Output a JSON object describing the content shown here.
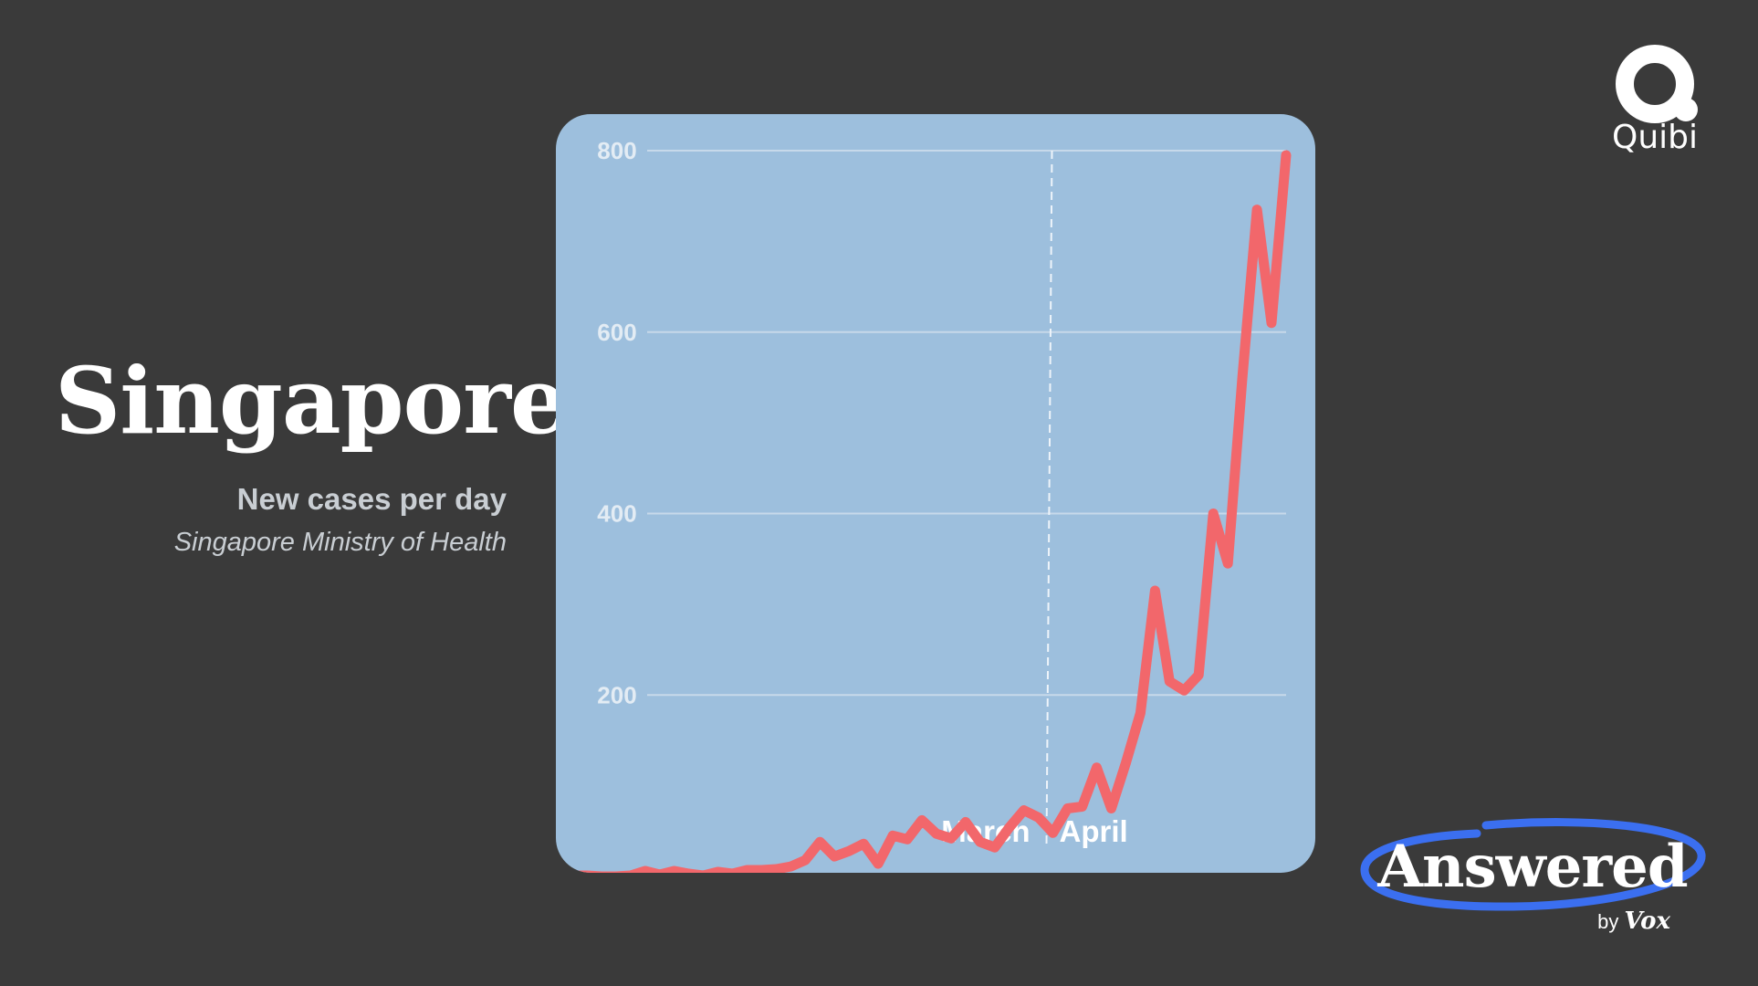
{
  "header": {
    "title": "Singapore",
    "subtitle": "New cases per day",
    "source": "Singapore Ministry of Health"
  },
  "branding": {
    "quibi": "Quibi",
    "answered": "Answered",
    "by": "by",
    "vox": "Vox"
  },
  "colors": {
    "background": "#3a3a3a",
    "chart_background": "#9dbfdd",
    "line": "#f2676b",
    "gridline": "#c7d9ea",
    "answered_ring": "#3b6ff0"
  },
  "chart_data": {
    "type": "line",
    "title": "",
    "xlabel": "",
    "ylabel": "",
    "ylim": [
      0,
      800
    ],
    "y_ticks": [
      200,
      400,
      600,
      800
    ],
    "y_tick_labels": [
      "200",
      "400",
      "600",
      "800"
    ],
    "grid": true,
    "x_domain": [
      0,
      76
    ],
    "period_labels": [
      "March",
      "April"
    ],
    "month_boundary_index": 51,
    "series": [
      {
        "values": [
          3,
          1,
          1,
          0,
          0,
          1,
          6,
          2,
          6,
          3,
          1,
          5,
          3,
          7,
          7,
          8,
          11,
          18,
          38,
          22,
          28,
          36,
          14,
          45,
          41,
          62,
          47,
          42,
          60,
          38,
          32,
          54,
          73,
          65,
          48,
          75,
          77,
          120,
          75,
          125,
          180,
          315,
          215,
          205,
          222,
          400,
          345,
          550,
          735,
          610,
          795
        ]
      }
    ]
  }
}
